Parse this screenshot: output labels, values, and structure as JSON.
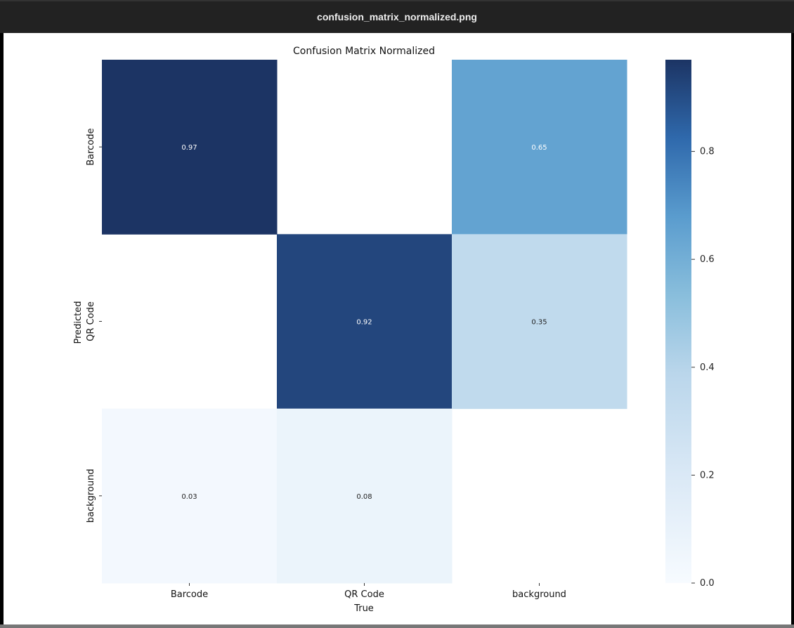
{
  "window": {
    "title": "confusion_matrix_normalized.png"
  },
  "chart_data": {
    "type": "heatmap",
    "title": "Confusion Matrix Normalized",
    "xlabel": "True",
    "ylabel": "Predicted",
    "x_categories": [
      "Barcode",
      "QR Code",
      "background"
    ],
    "y_categories": [
      "Barcode",
      "QR Code",
      "background"
    ],
    "values": [
      [
        0.97,
        null,
        0.65
      ],
      [
        null,
        0.92,
        0.35
      ],
      [
        0.03,
        0.08,
        null
      ]
    ],
    "cell_labels": [
      [
        "0.97",
        "",
        "0.65"
      ],
      [
        "",
        "0.92",
        "0.35"
      ],
      [
        "0.03",
        "0.08",
        ""
      ]
    ],
    "colormap": "Blues",
    "colorbar": {
      "range": [
        0.0,
        0.97
      ],
      "ticks": [
        "0.0",
        "0.2",
        "0.4",
        "0.6",
        "0.8"
      ]
    }
  }
}
